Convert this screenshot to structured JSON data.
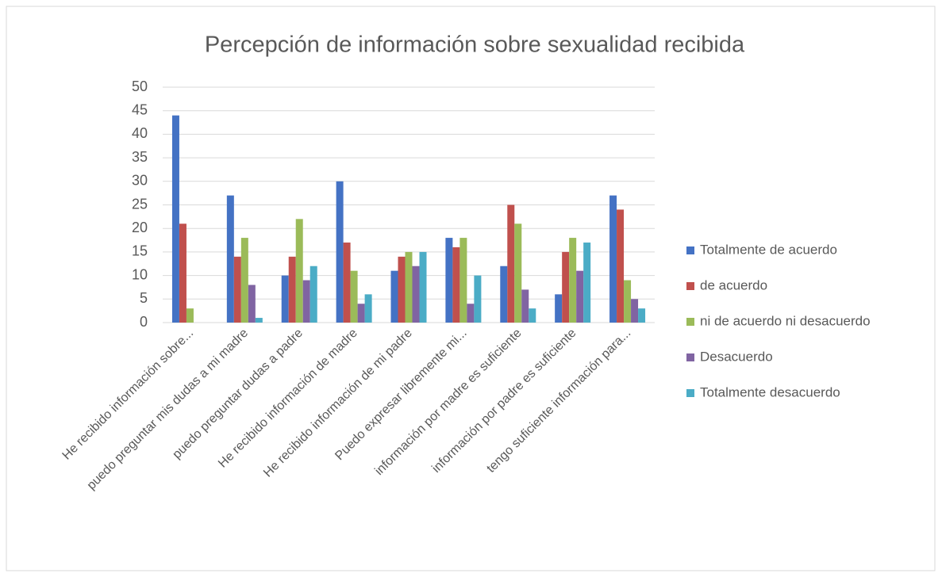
{
  "chart_data": {
    "type": "bar",
    "title": "Percepción de información sobre sexualidad recibida",
    "categories": [
      "He recibido información sobre...",
      "puedo preguntar mis dudas a mi madre",
      "puedo preguntar dudas a padre",
      "He recibido información de madre",
      "He recibido información de mi padre",
      "Puedo expresar libremente mi...",
      "información por madre es suficiente",
      "información por padre es suficiente",
      "tengo suficiente información para..."
    ],
    "series": [
      {
        "name": "Totalmente de acuerdo",
        "color": "#4472c4",
        "values": [
          44,
          27,
          10,
          30,
          11,
          18,
          12,
          6,
          27
        ]
      },
      {
        "name": "de acuerdo",
        "color": "#c0504d",
        "values": [
          21,
          14,
          14,
          17,
          14,
          16,
          25,
          15,
          24
        ]
      },
      {
        "name": "ni de acuerdo ni desacuerdo",
        "color": "#9bbb59",
        "values": [
          3,
          18,
          22,
          11,
          15,
          18,
          21,
          18,
          9
        ]
      },
      {
        "name": "Desacuerdo",
        "color": "#8064a2",
        "values": [
          0,
          8,
          9,
          4,
          12,
          4,
          7,
          11,
          5
        ]
      },
      {
        "name": "Totalmente desacuerdo",
        "color": "#4bacc6",
        "values": [
          0,
          1,
          12,
          6,
          15,
          10,
          3,
          17,
          3
        ]
      }
    ],
    "ylim": [
      0,
      50
    ],
    "yticks": [
      0,
      5,
      10,
      15,
      20,
      25,
      30,
      35,
      40,
      45,
      50
    ],
    "grid": true,
    "legend": "right"
  }
}
